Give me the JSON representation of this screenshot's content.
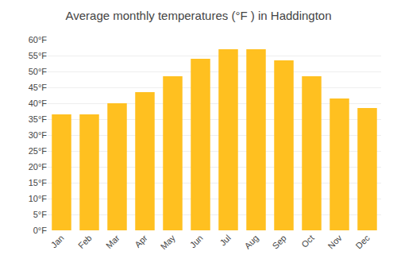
{
  "chart_data": {
    "type": "bar",
    "title": "Average monthly temperatures (°F ) in Haddington",
    "categories": [
      "Jan",
      "Feb",
      "Mar",
      "Apr",
      "May",
      "Jun",
      "Jul",
      "Aug",
      "Sep",
      "Oct",
      "Nov",
      "Dec"
    ],
    "values": [
      36.5,
      36.5,
      40.0,
      43.5,
      48.5,
      54.0,
      57.0,
      57.0,
      53.5,
      48.5,
      41.5,
      38.5
    ],
    "color": "#FFC020",
    "ylim": [
      0,
      60
    ],
    "yticks": [
      {
        "value": 0,
        "label": "0°F"
      },
      {
        "value": 5,
        "label": "5°F"
      },
      {
        "value": 10,
        "label": "10°F"
      },
      {
        "value": 15,
        "label": "15°F"
      },
      {
        "value": 20,
        "label": "20°F"
      },
      {
        "value": 25,
        "label": "25°F"
      },
      {
        "value": 30,
        "label": "30°F"
      },
      {
        "value": 35,
        "label": "35°F"
      },
      {
        "value": 40,
        "label": "40°F"
      },
      {
        "value": 45,
        "label": "45°F"
      },
      {
        "value": 50,
        "label": "50°F"
      },
      {
        "value": 55,
        "label": "55°F"
      },
      {
        "value": 60,
        "label": "60°F"
      }
    ],
    "grid": true
  }
}
